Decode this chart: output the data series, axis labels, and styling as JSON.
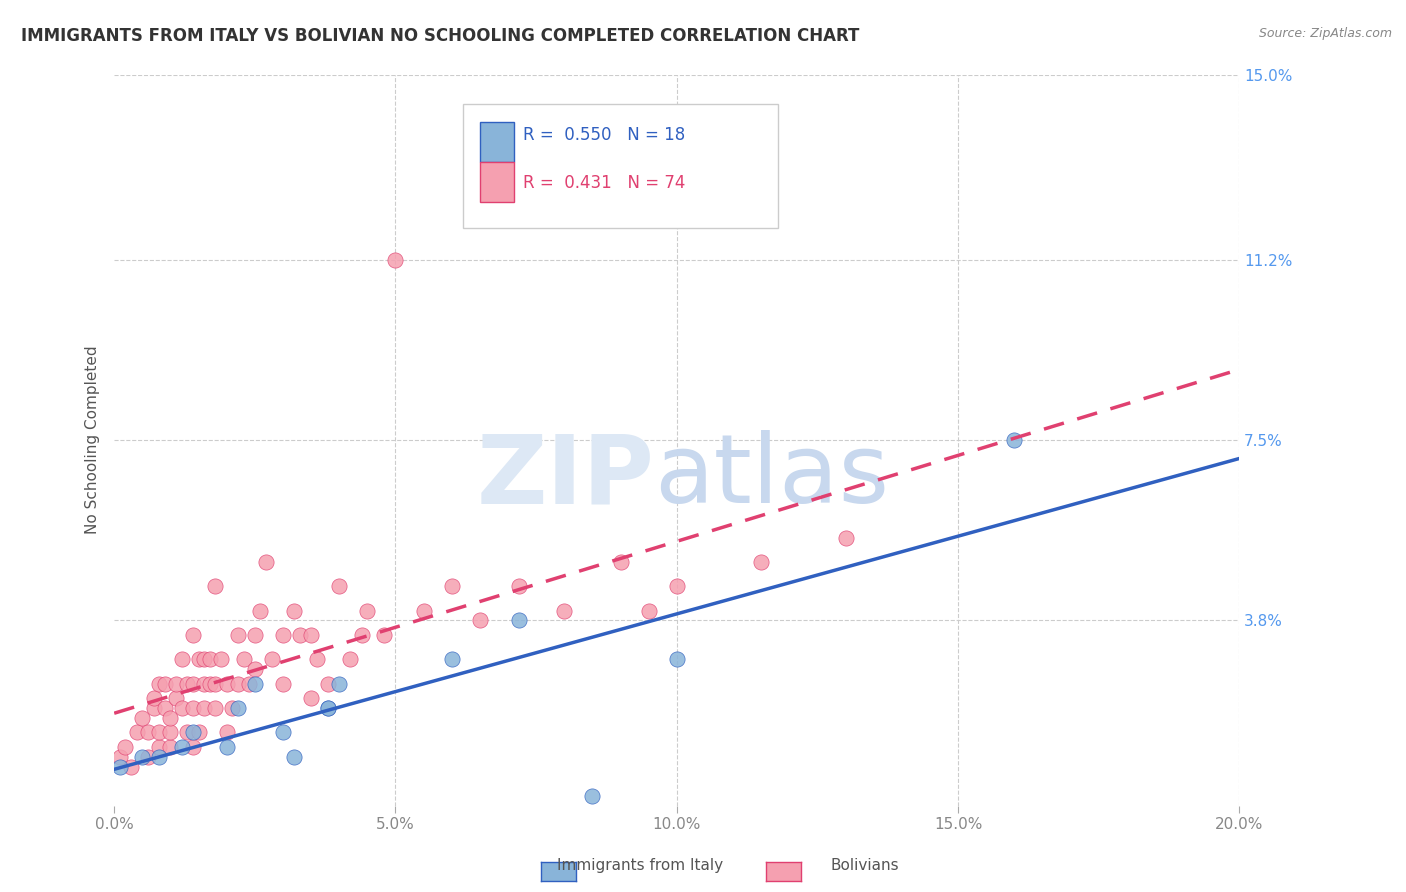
{
  "title": "IMMIGRANTS FROM ITALY VS BOLIVIAN NO SCHOOLING COMPLETED CORRELATION CHART",
  "source": "Source: ZipAtlas.com",
  "ylabel": "No Schooling Completed",
  "xlim": [
    0.0,
    0.2
  ],
  "ylim": [
    0.0,
    0.15
  ],
  "xticks": [
    0.0,
    0.05,
    0.1,
    0.15,
    0.2
  ],
  "xtick_labels": [
    "0.0%",
    "5.0%",
    "10.0%",
    "15.0%",
    "20.0%"
  ],
  "ytick_labels_right": [
    "15.0%",
    "11.2%",
    "7.5%",
    "3.8%"
  ],
  "ytick_values_right": [
    0.15,
    0.112,
    0.075,
    0.038
  ],
  "italy_R": 0.55,
  "italy_N": 18,
  "bolivia_R": 0.431,
  "bolivia_N": 74,
  "color_italy": "#89b4d9",
  "color_bolivia": "#f5a0b0",
  "color_italy_line": "#3060c0",
  "color_bolivia_line": "#e04070",
  "italy_x": [
    0.001,
    0.005,
    0.008,
    0.012,
    0.014,
    0.02,
    0.022,
    0.025,
    0.03,
    0.032,
    0.038,
    0.038,
    0.04,
    0.06,
    0.072,
    0.085,
    0.1,
    0.16
  ],
  "italy_y": [
    0.008,
    0.01,
    0.01,
    0.012,
    0.015,
    0.012,
    0.02,
    0.025,
    0.015,
    0.01,
    0.02,
    0.02,
    0.025,
    0.03,
    0.038,
    0.002,
    0.03,
    0.075
  ],
  "bolivia_x": [
    0.001,
    0.002,
    0.003,
    0.004,
    0.005,
    0.006,
    0.006,
    0.007,
    0.007,
    0.008,
    0.008,
    0.008,
    0.009,
    0.009,
    0.01,
    0.01,
    0.01,
    0.011,
    0.011,
    0.012,
    0.012,
    0.013,
    0.013,
    0.014,
    0.014,
    0.014,
    0.014,
    0.015,
    0.015,
    0.016,
    0.016,
    0.016,
    0.017,
    0.017,
    0.018,
    0.018,
    0.018,
    0.019,
    0.02,
    0.02,
    0.021,
    0.022,
    0.022,
    0.023,
    0.024,
    0.025,
    0.025,
    0.026,
    0.027,
    0.028,
    0.03,
    0.03,
    0.032,
    0.033,
    0.035,
    0.035,
    0.036,
    0.038,
    0.04,
    0.042,
    0.044,
    0.045,
    0.048,
    0.05,
    0.055,
    0.06,
    0.065,
    0.072,
    0.08,
    0.09,
    0.095,
    0.1,
    0.115,
    0.13
  ],
  "bolivia_y": [
    0.01,
    0.012,
    0.008,
    0.015,
    0.018,
    0.01,
    0.015,
    0.02,
    0.022,
    0.025,
    0.012,
    0.015,
    0.02,
    0.025,
    0.012,
    0.015,
    0.018,
    0.022,
    0.025,
    0.02,
    0.03,
    0.015,
    0.025,
    0.012,
    0.02,
    0.025,
    0.035,
    0.015,
    0.03,
    0.02,
    0.025,
    0.03,
    0.025,
    0.03,
    0.02,
    0.025,
    0.045,
    0.03,
    0.025,
    0.015,
    0.02,
    0.025,
    0.035,
    0.03,
    0.025,
    0.035,
    0.028,
    0.04,
    0.05,
    0.03,
    0.035,
    0.025,
    0.04,
    0.035,
    0.035,
    0.022,
    0.03,
    0.025,
    0.045,
    0.03,
    0.035,
    0.04,
    0.035,
    0.112,
    0.04,
    0.045,
    0.038,
    0.045,
    0.04,
    0.05,
    0.04,
    0.045,
    0.05,
    0.055
  ]
}
